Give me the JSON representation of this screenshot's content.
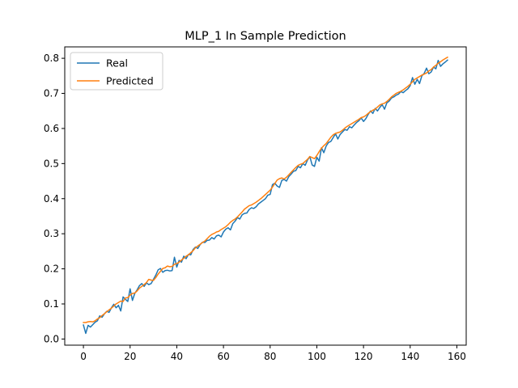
{
  "chart_data": {
    "type": "line",
    "title": "MLP_1 In Sample Prediction",
    "xlabel": "",
    "ylabel": "",
    "xlim": [
      -8,
      164
    ],
    "ylim": [
      -0.0175,
      0.8325
    ],
    "xticks": [
      0,
      20,
      40,
      60,
      80,
      100,
      120,
      140,
      160
    ],
    "yticks": [
      0.0,
      0.1,
      0.2,
      0.3,
      0.4,
      0.5,
      0.6,
      0.7,
      0.8
    ],
    "xtick_labels": [
      "0",
      "20",
      "40",
      "60",
      "80",
      "100",
      "120",
      "140",
      "160"
    ],
    "ytick_labels": [
      "0.0",
      "0.1",
      "0.2",
      "0.3",
      "0.4",
      "0.5",
      "0.6",
      "0.7",
      "0.8"
    ],
    "grid": false,
    "legend_position": "top-left",
    "series": [
      {
        "name": "Real",
        "color": "#1f77b4",
        "x": [
          0,
          1,
          2,
          3,
          4,
          5,
          6,
          7,
          8,
          9,
          10,
          11,
          12,
          13,
          14,
          15,
          16,
          17,
          18,
          19,
          20,
          21,
          22,
          23,
          24,
          25,
          26,
          27,
          28,
          29,
          30,
          31,
          32,
          33,
          34,
          35,
          36,
          37,
          38,
          39,
          40,
          41,
          42,
          43,
          44,
          45,
          46,
          47,
          48,
          49,
          50,
          51,
          52,
          53,
          54,
          55,
          56,
          57,
          58,
          59,
          60,
          61,
          62,
          63,
          64,
          65,
          66,
          67,
          68,
          69,
          70,
          71,
          72,
          73,
          74,
          75,
          76,
          77,
          78,
          79,
          80,
          81,
          82,
          83,
          84,
          85,
          86,
          87,
          88,
          89,
          90,
          91,
          92,
          93,
          94,
          95,
          96,
          97,
          98,
          99,
          100,
          101,
          102,
          103,
          104,
          105,
          106,
          107,
          108,
          109,
          110,
          111,
          112,
          113,
          114,
          115,
          116,
          117,
          118,
          119,
          120,
          121,
          122,
          123,
          124,
          125,
          126,
          127,
          128,
          129,
          130,
          131,
          132,
          133,
          134,
          135,
          136,
          137,
          138,
          139,
          140,
          141,
          142,
          143,
          144,
          145,
          146,
          147,
          148,
          149,
          150,
          151,
          152,
          153,
          154,
          155,
          156
        ],
        "y": [
          0.04,
          0.016,
          0.039,
          0.034,
          0.041,
          0.048,
          0.052,
          0.066,
          0.062,
          0.072,
          0.079,
          0.076,
          0.089,
          0.099,
          0.089,
          0.096,
          0.08,
          0.12,
          0.113,
          0.107,
          0.143,
          0.11,
          0.13,
          0.14,
          0.152,
          0.158,
          0.15,
          0.16,
          0.155,
          0.158,
          0.17,
          0.182,
          0.197,
          0.201,
          0.19,
          0.195,
          0.196,
          0.194,
          0.195,
          0.233,
          0.205,
          0.224,
          0.219,
          0.236,
          0.229,
          0.241,
          0.24,
          0.255,
          0.262,
          0.258,
          0.269,
          0.276,
          0.275,
          0.281,
          0.282,
          0.289,
          0.285,
          0.294,
          0.296,
          0.291,
          0.305,
          0.313,
          0.317,
          0.311,
          0.329,
          0.336,
          0.346,
          0.342,
          0.354,
          0.358,
          0.359,
          0.369,
          0.374,
          0.372,
          0.377,
          0.385,
          0.39,
          0.395,
          0.4,
          0.41,
          0.412,
          0.44,
          0.444,
          0.436,
          0.432,
          0.452,
          0.455,
          0.45,
          0.463,
          0.47,
          0.478,
          0.48,
          0.492,
          0.488,
          0.5,
          0.495,
          0.51,
          0.52,
          0.496,
          0.492,
          0.518,
          0.507,
          0.545,
          0.531,
          0.55,
          0.56,
          0.563,
          0.574,
          0.585,
          0.57,
          0.583,
          0.59,
          0.597,
          0.595,
          0.605,
          0.602,
          0.61,
          0.617,
          0.622,
          0.63,
          0.62,
          0.628,
          0.64,
          0.65,
          0.643,
          0.657,
          0.65,
          0.66,
          0.668,
          0.655,
          0.673,
          0.678,
          0.687,
          0.69,
          0.695,
          0.698,
          0.705,
          0.702,
          0.708,
          0.713,
          0.722,
          0.745,
          0.726,
          0.74,
          0.728,
          0.75,
          0.757,
          0.772,
          0.756,
          0.761,
          0.775,
          0.77,
          0.794,
          0.777,
          0.784,
          0.789,
          0.795
        ]
      },
      {
        "name": "Predicted",
        "color": "#ff7f0e",
        "x": [
          0,
          1,
          2,
          3,
          4,
          5,
          6,
          7,
          8,
          9,
          10,
          11,
          12,
          13,
          14,
          15,
          16,
          17,
          18,
          19,
          20,
          21,
          22,
          23,
          24,
          25,
          26,
          27,
          28,
          29,
          30,
          31,
          32,
          33,
          34,
          35,
          36,
          37,
          38,
          39,
          40,
          41,
          42,
          43,
          44,
          45,
          46,
          47,
          48,
          49,
          50,
          51,
          52,
          53,
          54,
          55,
          56,
          57,
          58,
          59,
          60,
          61,
          62,
          63,
          64,
          65,
          66,
          67,
          68,
          69,
          70,
          71,
          72,
          73,
          74,
          75,
          76,
          77,
          78,
          79,
          80,
          81,
          82,
          83,
          84,
          85,
          86,
          87,
          88,
          89,
          90,
          91,
          92,
          93,
          94,
          95,
          96,
          97,
          98,
          99,
          100,
          101,
          102,
          103,
          104,
          105,
          106,
          107,
          108,
          109,
          110,
          111,
          112,
          113,
          114,
          115,
          116,
          117,
          118,
          119,
          120,
          121,
          122,
          123,
          124,
          125,
          126,
          127,
          128,
          129,
          130,
          131,
          132,
          133,
          134,
          135,
          136,
          137,
          138,
          139,
          140,
          141,
          142,
          143,
          144,
          145,
          146,
          147,
          148,
          149,
          150,
          151,
          152,
          153,
          154,
          155,
          156
        ],
        "y": [
          0.047,
          0.047,
          0.049,
          0.05,
          0.049,
          0.052,
          0.057,
          0.061,
          0.067,
          0.072,
          0.078,
          0.083,
          0.088,
          0.094,
          0.1,
          0.104,
          0.108,
          0.107,
          0.117,
          0.118,
          0.125,
          0.13,
          0.131,
          0.137,
          0.145,
          0.15,
          0.155,
          0.161,
          0.17,
          0.168,
          0.167,
          0.175,
          0.185,
          0.193,
          0.201,
          0.203,
          0.208,
          0.206,
          0.207,
          0.213,
          0.215,
          0.219,
          0.225,
          0.23,
          0.236,
          0.24,
          0.246,
          0.252,
          0.26,
          0.265,
          0.27,
          0.275,
          0.279,
          0.286,
          0.293,
          0.298,
          0.301,
          0.305,
          0.307,
          0.312,
          0.316,
          0.32,
          0.326,
          0.333,
          0.338,
          0.342,
          0.348,
          0.355,
          0.362,
          0.37,
          0.375,
          0.38,
          0.382,
          0.386,
          0.39,
          0.395,
          0.4,
          0.406,
          0.412,
          0.418,
          0.424,
          0.433,
          0.443,
          0.453,
          0.457,
          0.459,
          0.456,
          0.461,
          0.468,
          0.475,
          0.482,
          0.489,
          0.495,
          0.498,
          0.5,
          0.506,
          0.512,
          0.52,
          0.517,
          0.514,
          0.523,
          0.534,
          0.544,
          0.551,
          0.557,
          0.566,
          0.575,
          0.582,
          0.586,
          0.588,
          0.59,
          0.595,
          0.601,
          0.606,
          0.61,
          0.614,
          0.618,
          0.622,
          0.626,
          0.631,
          0.633,
          0.637,
          0.643,
          0.648,
          0.652,
          0.655,
          0.661,
          0.667,
          0.67,
          0.672,
          0.677,
          0.683,
          0.69,
          0.695,
          0.7,
          0.703,
          0.706,
          0.71,
          0.715,
          0.72,
          0.726,
          0.733,
          0.74,
          0.744,
          0.748,
          0.752,
          0.755,
          0.758,
          0.764,
          0.768,
          0.775,
          0.78,
          0.786,
          0.79,
          0.795,
          0.799,
          0.803
        ]
      }
    ]
  }
}
